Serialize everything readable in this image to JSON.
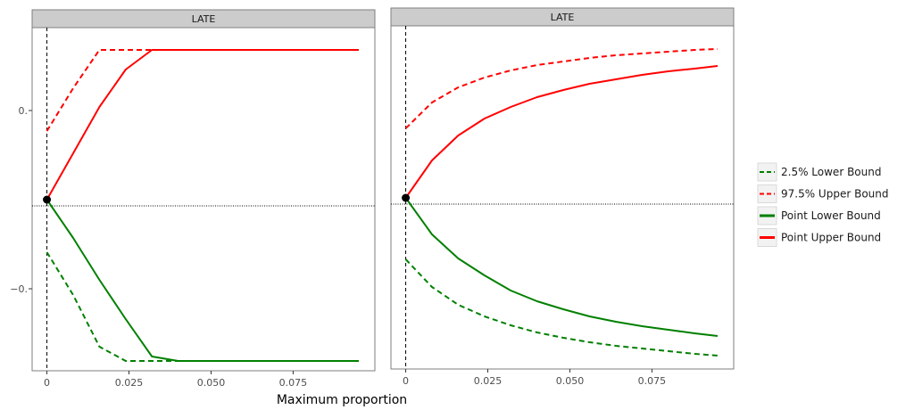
{
  "chart_data": {
    "type": "line",
    "xlabel": "Maximum proportion",
    "x_ticks": [
      "0",
      "0.025",
      "0.050",
      "0.075"
    ],
    "x_tick_values": [
      0,
      0.025,
      0.05,
      0.075
    ],
    "xlim": [
      -0.0045,
      0.0999
    ],
    "legend_position": "right",
    "legend": [
      {
        "label": "2.5% Lower Bound",
        "color": "#008000",
        "dash": true
      },
      {
        "label": "97.5% Upper Bound",
        "color": "#ff0000",
        "dash": true
      },
      {
        "label": "Point Lower Bound",
        "color": "#008000",
        "dash": false
      },
      {
        "label": "Point Upper Bound",
        "color": "#ff0000",
        "dash": false
      }
    ],
    "panels": [
      {
        "strip": "LATE",
        "y_tick_labels": [
          "0.",
          "−0."
        ],
        "y_tick_values": [
          0.1,
          -0.1
        ],
        "ylim": [
          -0.192,
          0.193
        ],
        "hline": -0.007,
        "point": [
          0,
          0.0
        ],
        "series": [
          {
            "name": "97.5% Upper Bound",
            "x": [
              0,
              0.008,
              0.016,
              0.024,
              0.032,
              0.04,
              0.055,
              0.07,
              0.085,
              0.095
            ],
            "y": [
              0.077,
              0.125,
              0.168,
              0.168,
              0.168,
              0.168,
              0.168,
              0.168,
              0.168,
              0.168
            ]
          },
          {
            "name": "Point Upper Bound",
            "x": [
              0,
              0.008,
              0.016,
              0.024,
              0.032,
              0.04,
              0.055,
              0.07,
              0.085,
              0.095
            ],
            "y": [
              0.0,
              0.052,
              0.104,
              0.146,
              0.168,
              0.168,
              0.168,
              0.168,
              0.168,
              0.168
            ]
          },
          {
            "name": "Point Lower Bound",
            "x": [
              0,
              0.008,
              0.016,
              0.024,
              0.032,
              0.04,
              0.055,
              0.07,
              0.085,
              0.095
            ],
            "y": [
              0.0,
              -0.043,
              -0.09,
              -0.134,
              -0.176,
              -0.181,
              -0.181,
              -0.181,
              -0.181,
              -0.181
            ]
          },
          {
            "name": "2.5% Lower Bound",
            "x": [
              0,
              0.008,
              0.016,
              0.024,
              0.032,
              0.04,
              0.055,
              0.07,
              0.085,
              0.095
            ],
            "y": [
              -0.059,
              -0.107,
              -0.165,
              -0.181,
              -0.181,
              -0.181,
              -0.181,
              -0.181,
              -0.181,
              -0.181
            ]
          }
        ]
      },
      {
        "strip": "LATE",
        "y_tick_labels": [],
        "y_tick_values": [],
        "ylim": [
          -0.192,
          0.193
        ],
        "hline": -0.007,
        "point": [
          0,
          0.0
        ],
        "series": [
          {
            "name": "97.5% Upper Bound",
            "x": [
              0,
              0.008,
              0.016,
              0.024,
              0.032,
              0.04,
              0.048,
              0.056,
              0.064,
              0.072,
              0.08,
              0.088,
              0.095
            ],
            "y": [
              0.078,
              0.107,
              0.124,
              0.135,
              0.143,
              0.149,
              0.153,
              0.157,
              0.16,
              0.162,
              0.164,
              0.166,
              0.167
            ]
          },
          {
            "name": "Point Upper Bound",
            "x": [
              0,
              0.008,
              0.016,
              0.024,
              0.032,
              0.04,
              0.048,
              0.056,
              0.064,
              0.072,
              0.08,
              0.088,
              0.095
            ],
            "y": [
              0.0,
              0.042,
              0.07,
              0.089,
              0.102,
              0.113,
              0.121,
              0.128,
              0.133,
              0.138,
              0.142,
              0.145,
              0.148
            ]
          },
          {
            "name": "Point Lower Bound",
            "x": [
              0,
              0.008,
              0.016,
              0.024,
              0.032,
              0.04,
              0.048,
              0.056,
              0.064,
              0.072,
              0.08,
              0.088,
              0.095
            ],
            "y": [
              0.0,
              -0.041,
              -0.068,
              -0.087,
              -0.104,
              -0.116,
              -0.125,
              -0.133,
              -0.139,
              -0.144,
              -0.148,
              -0.152,
              -0.155
            ]
          },
          {
            "name": "2.5% Lower Bound",
            "x": [
              0,
              0.008,
              0.016,
              0.024,
              0.032,
              0.04,
              0.048,
              0.056,
              0.064,
              0.072,
              0.08,
              0.088,
              0.095
            ],
            "y": [
              -0.069,
              -0.1,
              -0.12,
              -0.133,
              -0.143,
              -0.151,
              -0.157,
              -0.162,
              -0.166,
              -0.169,
              -0.172,
              -0.175,
              -0.177
            ]
          }
        ]
      }
    ]
  }
}
